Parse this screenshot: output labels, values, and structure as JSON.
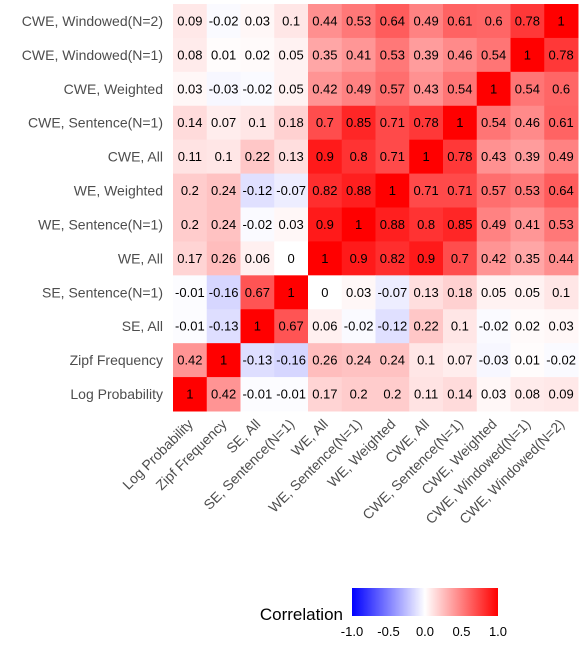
{
  "chart_data": {
    "type": "heatmap",
    "rows": [
      "CWE, Windowed(N=2)",
      "CWE, Windowed(N=1)",
      "CWE, Weighted",
      "CWE, Sentence(N=1)",
      "CWE, All",
      "WE, Weighted",
      "WE, Sentence(N=1)",
      "WE, All",
      "SE, Sentence(N=1)",
      "SE, All",
      "Zipf Frequency",
      "Log Probability"
    ],
    "columns": [
      "Log Probability",
      "Zipf Frequency",
      "SE, All",
      "SE, Sentence(N=1)",
      "WE, All",
      "WE, Sentence(N=1)",
      "WE, Weighted",
      "CWE, All",
      "CWE, Sentence(N=1)",
      "CWE, Weighted",
      "CWE, Windowed(N=1)",
      "CWE, Windowed(N=2)"
    ],
    "values": [
      [
        0.09,
        -0.02,
        0.03,
        0.1,
        0.44,
        0.53,
        0.64,
        0.49,
        0.61,
        0.6,
        0.78,
        1
      ],
      [
        0.08,
        0.01,
        0.02,
        0.05,
        0.35,
        0.41,
        0.53,
        0.39,
        0.46,
        0.54,
        1,
        0.78
      ],
      [
        0.03,
        -0.03,
        -0.02,
        0.05,
        0.42,
        0.49,
        0.57,
        0.43,
        0.54,
        1,
        0.54,
        0.6
      ],
      [
        0.14,
        0.07,
        0.1,
        0.18,
        0.7,
        0.85,
        0.71,
        0.78,
        1,
        0.54,
        0.46,
        0.61
      ],
      [
        0.11,
        0.1,
        0.22,
        0.13,
        0.9,
        0.8,
        0.71,
        1,
        0.78,
        0.43,
        0.39,
        0.49
      ],
      [
        0.2,
        0.24,
        -0.12,
        -0.07,
        0.82,
        0.88,
        1,
        0.71,
        0.71,
        0.57,
        0.53,
        0.64
      ],
      [
        0.2,
        0.24,
        -0.02,
        0.03,
        0.9,
        1,
        0.88,
        0.8,
        0.85,
        0.49,
        0.41,
        0.53
      ],
      [
        0.17,
        0.26,
        0.06,
        0,
        1,
        0.9,
        0.82,
        0.9,
        0.7,
        0.42,
        0.35,
        0.44
      ],
      [
        -0.01,
        -0.16,
        0.67,
        1,
        0,
        0.03,
        -0.07,
        0.13,
        0.18,
        0.05,
        0.05,
        0.1
      ],
      [
        -0.01,
        -0.13,
        1,
        0.67,
        0.06,
        -0.02,
        -0.12,
        0.22,
        0.1,
        -0.02,
        0.02,
        0.03
      ],
      [
        0.42,
        1,
        -0.13,
        -0.16,
        0.26,
        0.24,
        0.24,
        0.1,
        0.07,
        -0.03,
        0.01,
        -0.02
      ],
      [
        1,
        0.42,
        -0.01,
        -0.01,
        0.17,
        0.2,
        0.2,
        0.11,
        0.14,
        0.03,
        0.08,
        0.09
      ]
    ],
    "legend": {
      "title": "Correlation",
      "ticks": [
        "-1.0",
        "-0.5",
        "0.0",
        "0.5",
        "1.0"
      ],
      "range": [
        -1,
        1
      ],
      "colors": {
        "low": "#0000ff",
        "mid": "#ffffff",
        "high": "#ff0000"
      },
      "position": "bottom"
    },
    "grid": false
  }
}
